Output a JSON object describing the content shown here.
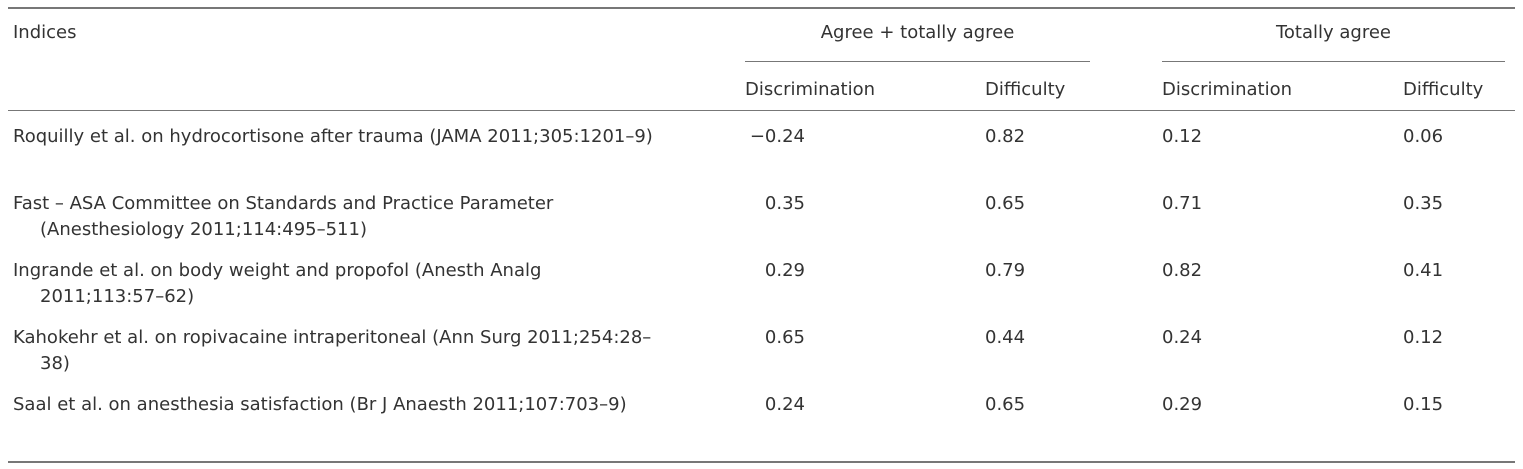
{
  "table": {
    "header": "Indices",
    "groups": [
      "Agree + totally agree",
      "Totally agree"
    ],
    "subheaders": [
      "Discrimination",
      "Difficulty",
      "Discrimination",
      "Difficulty"
    ],
    "rows": [
      [
        "Roquilly et al. on hydrocortisone after trauma (JAMA 2011;305:1201–9)",
        "−0.24",
        "0.82",
        "0.12",
        "0.06"
      ],
      [
        "Fast – ASA Committee on Standards and Practice Parameter (Anesthesiology 2011;114:495–511)",
        "0.35",
        "0.65",
        "0.71",
        "0.35"
      ],
      [
        "Ingrande et al. on body weight and propofol (Anesth Analg 2011;113:57–62)",
        "0.29",
        "0.79",
        "0.82",
        "0.41"
      ],
      [
        "Kahokehr et al. on ropivacaine intraperitoneal (Ann Surg 2011;254:28–38)",
        "0.65",
        "0.44",
        "0.24",
        "0.12"
      ],
      [
        "Saal et al. on anesthesia satisfaction (Br J Anaesth 2011;107:703–9)",
        "0.24",
        "0.65",
        "0.29",
        "0.15"
      ]
    ]
  }
}
